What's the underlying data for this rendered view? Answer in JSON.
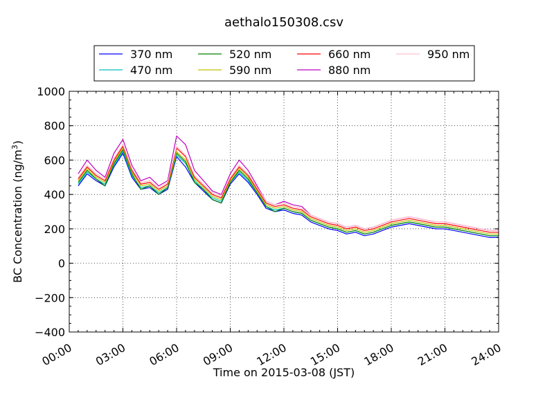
{
  "chart_data": {
    "type": "line",
    "title": "aethalo150308.csv",
    "xlabel": "Time on 2015-03-08 (JST)",
    "ylabel": "BC Concentration (ng/m³)",
    "ylabel_main": "BC Concentration (ng/m",
    "ylabel_sup": "3",
    "ylabel_end": ")",
    "xlim": [
      0,
      24
    ],
    "ylim": [
      -400,
      1000
    ],
    "x_unit": "hours since 2015-03-08 00:00 JST",
    "x_ticks": [
      0,
      3,
      6,
      9,
      12,
      15,
      18,
      21,
      24
    ],
    "x_tick_labels": [
      "00:00",
      "03:00",
      "06:00",
      "09:00",
      "12:00",
      "15:00",
      "18:00",
      "21:00",
      "24:00"
    ],
    "y_ticks": [
      -400,
      -200,
      0,
      200,
      400,
      600,
      800,
      1000
    ],
    "y_tick_labels": [
      "−400",
      "−200",
      "0",
      "200",
      "400",
      "600",
      "800",
      "1000"
    ],
    "grid": true,
    "legend_position": "top, above plot",
    "x": [
      0.5,
      1,
      1.5,
      2,
      2.5,
      3,
      3.5,
      4,
      4.5,
      5,
      5.5,
      6,
      6.5,
      7,
      7.5,
      8,
      8.5,
      9,
      9.5,
      10,
      10.5,
      11,
      11.5,
      12,
      12.5,
      13,
      13.5,
      14,
      14.5,
      15,
      15.5,
      16,
      16.5,
      17,
      17.5,
      18,
      18.5,
      19,
      19.5,
      20,
      20.5,
      21,
      21.5,
      22,
      22.5,
      23,
      23.5,
      24
    ],
    "series": [
      {
        "name": "370 nm",
        "color": "#0000ff",
        "values": [
          450,
          520,
          480,
          450,
          560,
          640,
          500,
          430,
          440,
          400,
          430,
          620,
          560,
          470,
          420,
          370,
          350,
          460,
          520,
          470,
          400,
          320,
          300,
          310,
          290,
          280,
          240,
          220,
          200,
          190,
          170,
          180,
          160,
          170,
          190,
          210,
          220,
          230,
          220,
          210,
          200,
          200,
          190,
          180,
          170,
          160,
          150,
          150
        ]
      },
      {
        "name": "470 nm",
        "color": "#00bfbf",
        "values": [
          460,
          530,
          490,
          460,
          570,
          650,
          510,
          440,
          450,
          410,
          440,
          630,
          580,
          480,
          430,
          380,
          360,
          470,
          530,
          480,
          410,
          330,
          310,
          320,
          300,
          290,
          250,
          230,
          210,
          200,
          180,
          190,
          170,
          180,
          200,
          220,
          230,
          240,
          230,
          220,
          210,
          210,
          200,
          190,
          180,
          170,
          160,
          160
        ]
      },
      {
        "name": "520 nm",
        "color": "#008000",
        "values": [
          470,
          540,
          490,
          450,
          580,
          660,
          520,
          430,
          450,
          400,
          440,
          640,
          590,
          470,
          430,
          370,
          350,
          470,
          540,
          490,
          410,
          330,
          300,
          320,
          300,
          290,
          250,
          230,
          210,
          200,
          180,
          190,
          170,
          180,
          200,
          220,
          230,
          240,
          230,
          220,
          210,
          210,
          200,
          190,
          180,
          170,
          160,
          160
        ]
      },
      {
        "name": "590 nm",
        "color": "#bfbf00",
        "values": [
          480,
          550,
          500,
          470,
          590,
          670,
          530,
          450,
          460,
          420,
          450,
          650,
          600,
          490,
          440,
          390,
          370,
          480,
          550,
          500,
          420,
          340,
          320,
          330,
          310,
          300,
          260,
          240,
          220,
          210,
          190,
          200,
          180,
          190,
          210,
          230,
          240,
          250,
          240,
          230,
          220,
          220,
          210,
          200,
          190,
          180,
          170,
          170
        ]
      },
      {
        "name": "660 nm",
        "color": "#ff0000",
        "values": [
          490,
          560,
          510,
          480,
          600,
          680,
          540,
          460,
          470,
          430,
          460,
          670,
          620,
          500,
          450,
          400,
          380,
          490,
          560,
          510,
          430,
          350,
          330,
          340,
          320,
          310,
          270,
          250,
          230,
          220,
          200,
          210,
          190,
          200,
          220,
          240,
          250,
          260,
          250,
          240,
          230,
          230,
          220,
          210,
          200,
          190,
          180,
          180
        ]
      },
      {
        "name": "880 nm",
        "color": "#bf00bf",
        "values": [
          520,
          600,
          540,
          500,
          640,
          720,
          570,
          480,
          500,
          450,
          480,
          740,
          690,
          540,
          480,
          420,
          400,
          520,
          600,
          540,
          450,
          360,
          340,
          360,
          340,
          330,
          280,
          260,
          240,
          230,
          210,
          220,
          200,
          210,
          230,
          250,
          260,
          270,
          260,
          250,
          240,
          240,
          230,
          220,
          210,
          200,
          190,
          190
        ]
      },
      {
        "name": "950 nm",
        "color": "#ffc0cb",
        "values": [
          500,
          570,
          520,
          490,
          610,
          690,
          550,
          470,
          480,
          440,
          470,
          680,
          630,
          510,
          460,
          410,
          390,
          500,
          570,
          520,
          440,
          360,
          340,
          350,
          330,
          320,
          280,
          260,
          240,
          230,
          210,
          220,
          200,
          210,
          230,
          250,
          260,
          270,
          260,
          250,
          240,
          240,
          230,
          220,
          210,
          200,
          190,
          190
        ]
      }
    ]
  }
}
